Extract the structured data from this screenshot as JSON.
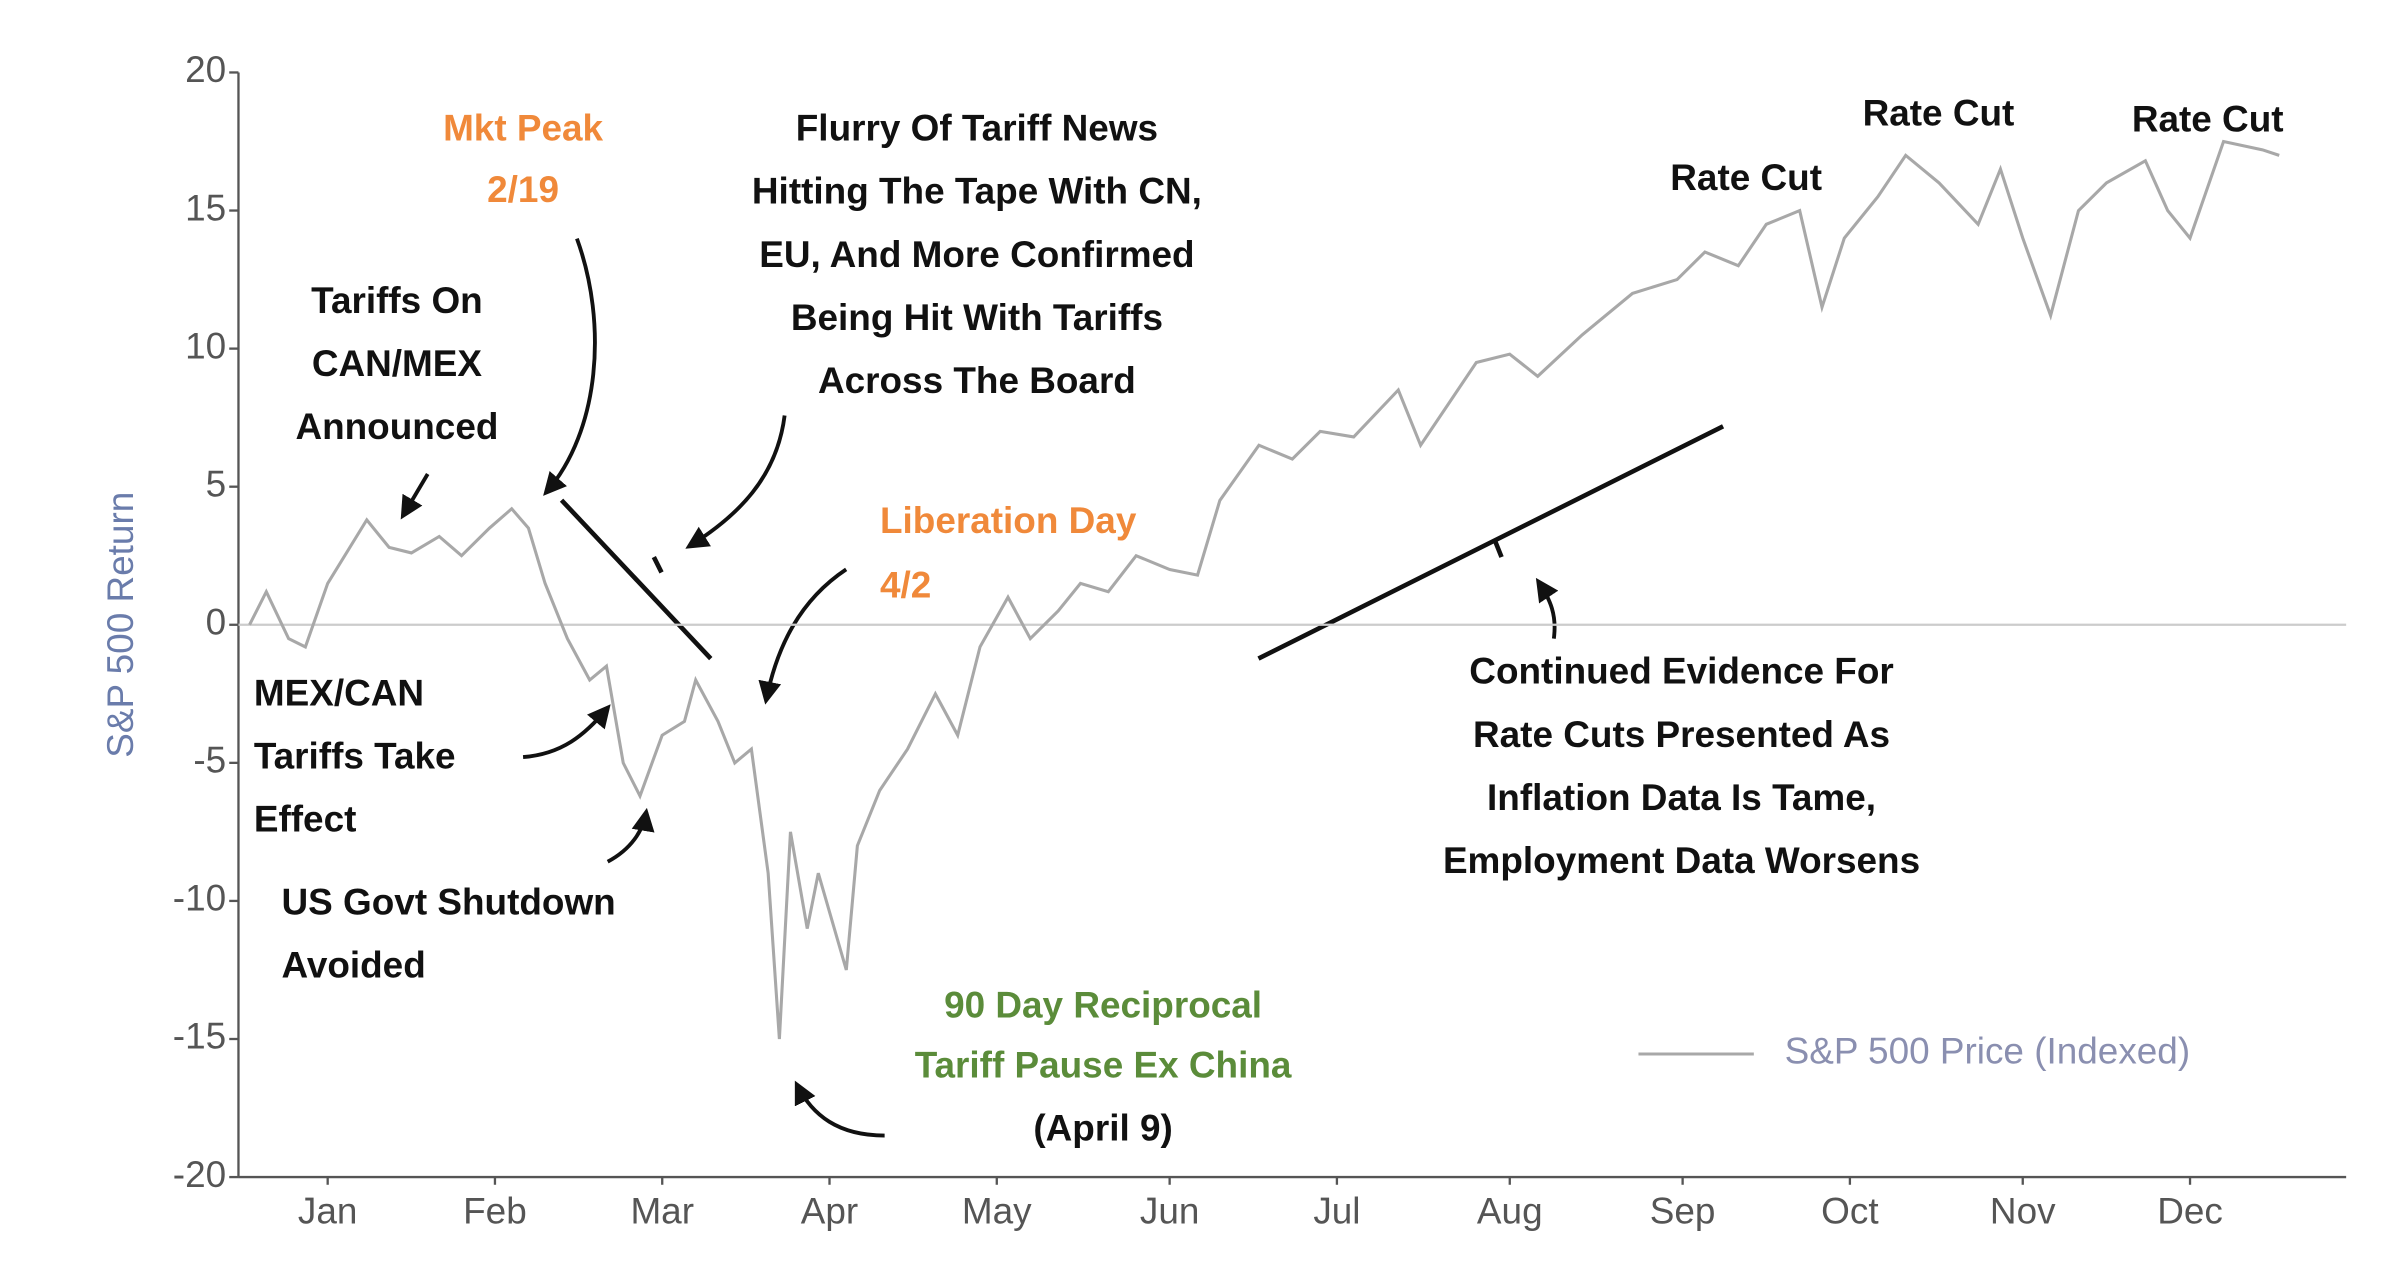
{
  "chart_data": {
    "type": "line",
    "y_label": "S&P 500 Return",
    "xlim": [
      -1,
      377
    ],
    "xticks": [
      {
        "value": 15,
        "label": "Jan"
      },
      {
        "value": 45,
        "label": "Feb"
      },
      {
        "value": 75,
        "label": "Mar"
      },
      {
        "value": 105,
        "label": "Apr"
      },
      {
        "value": 135,
        "label": "May"
      },
      {
        "value": 166,
        "label": "Jun"
      },
      {
        "value": 196,
        "label": "Jul"
      },
      {
        "value": 227,
        "label": "Aug"
      },
      {
        "value": 258,
        "label": "Sep"
      },
      {
        "value": 288,
        "label": "Oct"
      },
      {
        "value": 319,
        "label": "Nov"
      },
      {
        "value": 349,
        "label": "Dec"
      }
    ],
    "ylim": [
      -20,
      20
    ],
    "yticks": [
      -20,
      -15,
      -10,
      -5,
      0,
      5,
      10,
      15,
      20
    ],
    "zero_line": true,
    "legend": "lower right",
    "x": [
      1,
      4,
      8,
      11,
      15,
      22,
      26,
      30,
      35,
      39,
      44,
      48,
      51,
      54,
      58,
      62,
      65,
      68,
      71,
      75,
      79,
      81,
      85,
      88,
      91,
      94,
      96,
      98,
      101,
      103,
      108,
      110,
      114,
      119,
      124,
      128,
      132,
      137,
      141,
      146,
      150,
      155,
      160,
      166,
      171,
      175,
      182,
      188,
      193,
      199,
      207,
      211,
      216,
      221,
      227,
      232,
      240,
      249,
      257,
      262,
      268,
      273,
      279,
      283,
      287,
      293,
      298,
      304,
      311,
      315,
      319,
      324,
      329,
      334,
      341,
      345,
      349,
      355,
      362,
      365
    ],
    "series": [
      {
        "name": "S&P 500 Price (Indexed)",
        "color": "#a8a8a8",
        "values": [
          0,
          1.2,
          -0.5,
          -0.8,
          1.5,
          3.8,
          2.8,
          2.6,
          3.2,
          2.5,
          3.5,
          4.2,
          3.5,
          1.5,
          -0.5,
          -2,
          -1.5,
          -5,
          -6.2,
          -4,
          -3.5,
          -2,
          -3.5,
          -5,
          -4.5,
          -9,
          -15,
          -7.5,
          -11,
          -9,
          -12.5,
          -8,
          -6,
          -4.5,
          -2.5,
          -4,
          -0.8,
          1,
          -0.5,
          0.5,
          1.5,
          1.2,
          2.5,
          2,
          1.8,
          4.5,
          6.5,
          6,
          7,
          6.8,
          8.5,
          6.5,
          8,
          9.5,
          9.8,
          9,
          10.5,
          12,
          12.5,
          13.5,
          13,
          14.5,
          15,
          11.5,
          14,
          15.5,
          17,
          16,
          14.5,
          16.5,
          14,
          11.2,
          15,
          16,
          16.8,
          15,
          14,
          17.5,
          17.2,
          17
        ]
      }
    ],
    "annotations": [
      {
        "lines": [
          "Mkt Peak",
          "2/19"
        ],
        "color": "#f0893a"
      },
      {
        "lines": [
          "Flurry Of Tariff News",
          "Hitting The Tape With CN,",
          "EU, And More Confirmed",
          "Being Hit With Tariffs",
          "Across The Board"
        ],
        "color": "#111111"
      },
      {
        "lines": [
          "Tariffs On",
          "CAN/MEX",
          "Announced"
        ],
        "color": "#111111"
      },
      {
        "lines": [
          "Liberation Day",
          "4/2"
        ],
        "color": "#f0893a"
      },
      {
        "lines": [
          "Rate Cut"
        ],
        "color": "#111111"
      },
      {
        "lines": [
          "Rate Cut"
        ],
        "color": "#111111"
      },
      {
        "lines": [
          "Rate Cut"
        ],
        "color": "#111111"
      },
      {
        "lines": [
          "MEX/CAN",
          "Tariffs Take",
          "Effect"
        ],
        "color": "#111111"
      },
      {
        "lines": [
          "US Govt Shutdown",
          "Avoided"
        ],
        "color": "#111111"
      },
      {
        "lines": [
          "90 Day Reciprocal",
          "Tariff Pause Ex China"
        ],
        "color": "#5b8c3a"
      },
      {
        "lines": [
          "(April 9)"
        ],
        "color": "#111111"
      },
      {
        "lines": [
          "Continued Evidence For",
          "Rate Cuts Presented As",
          "Inflation Data Is Tame,",
          "Employment Data Worsens"
        ],
        "color": "#111111"
      }
    ]
  }
}
